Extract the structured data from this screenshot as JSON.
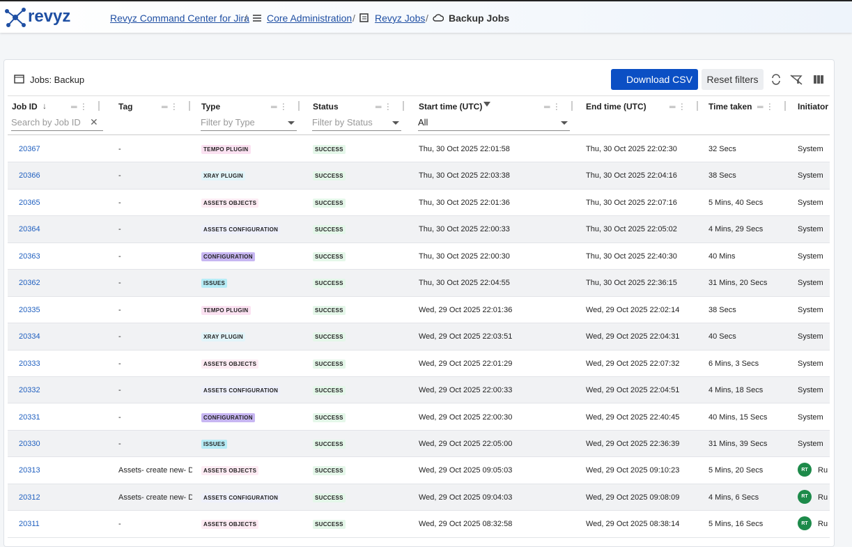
{
  "header": {
    "logo": "revyz",
    "breadcrumbs": [
      "Revyz Command Center for Jira",
      "Core Administration",
      "Revyz Jobs"
    ],
    "current": "Backup Jobs"
  },
  "panel": {
    "title": "Jobs: Backup",
    "buttons": [
      "Download CSV",
      "Reset filters"
    ]
  },
  "table": {
    "columns": [
      "Job ID",
      "Tag",
      "Type",
      "Status",
      "Start time (UTC)",
      "End time (UTC)",
      "Time taken",
      "Initiator"
    ],
    "filters": {
      "id": "Search by Job ID",
      "type": "Filter by Type",
      "status": "Filter by Status",
      "start": "All"
    },
    "rows": [
      {
        "id": "20367",
        "tag": "-",
        "type": "TEMPO PLUGIN",
        "status": "SUCCESS",
        "start": "Thu, 30 Oct 2025 22:01:58",
        "end": "Thu, 30 Oct 2025 22:02:30",
        "taken": "32 Secs",
        "initiator": "System"
      },
      {
        "id": "20366",
        "tag": "-",
        "type": "XRAY PLUGIN",
        "status": "SUCCESS",
        "start": "Thu, 30 Oct 2025 22:03:38",
        "end": "Thu, 30 Oct 2025 22:04:16",
        "taken": "38 Secs",
        "initiator": "System"
      },
      {
        "id": "20365",
        "tag": "-",
        "type": "ASSETS OBJECTS",
        "status": "SUCCESS",
        "start": "Thu, 30 Oct 2025 22:01:36",
        "end": "Thu, 30 Oct 2025 22:07:16",
        "taken": "5 Mins, 40 Secs",
        "initiator": "System"
      },
      {
        "id": "20364",
        "tag": "-",
        "type": "ASSETS CONFIGURATION",
        "status": "SUCCESS",
        "start": "Thu, 30 Oct 2025 22:00:33",
        "end": "Thu, 30 Oct 2025 22:05:02",
        "taken": "4 Mins, 29 Secs",
        "initiator": "System"
      },
      {
        "id": "20363",
        "tag": "-",
        "type": "CONFIGURATION",
        "status": "SUCCESS",
        "start": "Thu, 30 Oct 2025 22:00:30",
        "end": "Thu, 30 Oct 2025 22:40:30",
        "taken": "40 Mins",
        "initiator": "System"
      },
      {
        "id": "20362",
        "tag": "-",
        "type": "ISSUES",
        "status": "SUCCESS",
        "start": "Thu, 30 Oct 2025 22:04:55",
        "end": "Thu, 30 Oct 2025 22:36:15",
        "taken": "31 Mins, 20 Secs",
        "initiator": "System"
      },
      {
        "id": "20335",
        "tag": "-",
        "type": "TEMPO PLUGIN",
        "status": "SUCCESS",
        "start": "Wed, 29 Oct 2025 22:01:36",
        "end": "Wed, 29 Oct 2025 22:02:14",
        "taken": "38 Secs",
        "initiator": "System"
      },
      {
        "id": "20334",
        "tag": "-",
        "type": "XRAY PLUGIN",
        "status": "SUCCESS",
        "start": "Wed, 29 Oct 2025 22:03:51",
        "end": "Wed, 29 Oct 2025 22:04:31",
        "taken": "40 Secs",
        "initiator": "System"
      },
      {
        "id": "20333",
        "tag": "-",
        "type": "ASSETS OBJECTS",
        "status": "SUCCESS",
        "start": "Wed, 29 Oct 2025 22:01:29",
        "end": "Wed, 29 Oct 2025 22:07:32",
        "taken": "6 Mins, 3 Secs",
        "initiator": "System"
      },
      {
        "id": "20332",
        "tag": "-",
        "type": "ASSETS CONFIGURATION",
        "status": "SUCCESS",
        "start": "Wed, 29 Oct 2025 22:00:33",
        "end": "Wed, 29 Oct 2025 22:04:51",
        "taken": "4 Mins, 18 Secs",
        "initiator": "System"
      },
      {
        "id": "20331",
        "tag": "-",
        "type": "CONFIGURATION",
        "status": "SUCCESS",
        "start": "Wed, 29 Oct 2025 22:00:30",
        "end": "Wed, 29 Oct 2025 22:40:45",
        "taken": "40 Mins, 15 Secs",
        "initiator": "System"
      },
      {
        "id": "20330",
        "tag": "-",
        "type": "ISSUES",
        "status": "SUCCESS",
        "start": "Wed, 29 Oct 2025 22:05:00",
        "end": "Wed, 29 Oct 2025 22:36:39",
        "taken": "31 Mins, 39 Secs",
        "initiator": "System"
      },
      {
        "id": "20313",
        "tag": "Assets- create new- D",
        "type": "ASSETS OBJECTS",
        "status": "SUCCESS",
        "start": "Wed, 29 Oct 2025 09:05:03",
        "end": "Wed, 29 Oct 2025 09:10:23",
        "taken": "5 Mins, 20 Secs",
        "avatar": "RT",
        "initiator": "Ru"
      },
      {
        "id": "20312",
        "tag": "Assets- create new- D",
        "type": "ASSETS CONFIGURATION",
        "status": "SUCCESS",
        "start": "Wed, 29 Oct 2025 09:04:03",
        "end": "Wed, 29 Oct 2025 09:08:09",
        "taken": "4 Mins, 6 Secs",
        "avatar": "RT",
        "initiator": "Ru"
      },
      {
        "id": "20311",
        "tag": "-",
        "type": "ASSETS OBJECTS",
        "status": "SUCCESS",
        "start": "Wed, 29 Oct 2025 08:32:58",
        "end": "Wed, 29 Oct 2025 08:38:14",
        "taken": "5 Mins, 16 Secs",
        "avatar": "RT",
        "initiator": "Ru"
      }
    ]
  }
}
